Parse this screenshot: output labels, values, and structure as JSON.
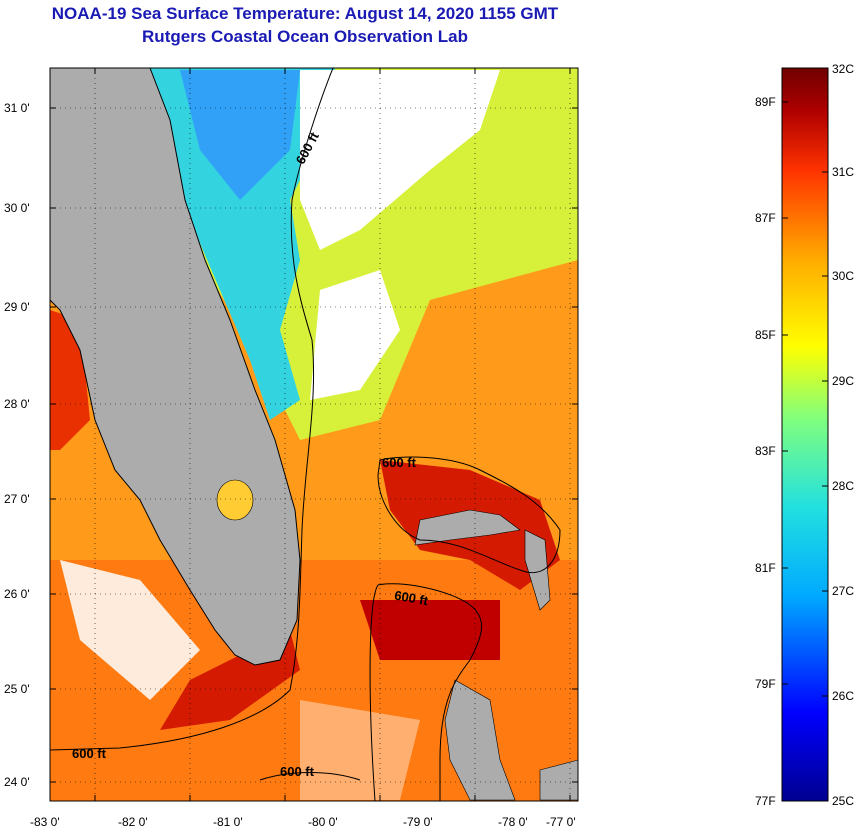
{
  "title": "NOAA-19 Sea Surface Temperature:  August 14, 2020 1155 GMT",
  "subtitle": "Rutgers Coastal Ocean Observation Lab",
  "map": {
    "lat_ticks": [
      "31 0'",
      "30 0'",
      "29 0'",
      "28 0'",
      "27 0'",
      "26 0'",
      "25 0'",
      "24 0'"
    ],
    "lon_ticks": [
      "-83 0'",
      "-82 0'",
      "-81 0'",
      "-80 0'",
      "-79 0'",
      "-78 0'",
      "-77 0'"
    ],
    "contour_labels": [
      "600 ft",
      "600 ft",
      "600 ft",
      "600 ft",
      "600 ft"
    ]
  },
  "colorbar": {
    "celsius_labels": [
      "32C",
      "31C",
      "30C",
      "29C",
      "28C",
      "27C",
      "26C",
      "25C"
    ],
    "fahrenheit_labels": [
      "89F",
      "87F",
      "85F",
      "83F",
      "81F",
      "79F",
      "77F"
    ],
    "colors": [
      "#000090",
      "#0000ff",
      "#00aaff",
      "#22e0e0",
      "#7fff7f",
      "#ffff00",
      "#ffaa00",
      "#ff3300",
      "#b00000",
      "#700000"
    ]
  }
}
